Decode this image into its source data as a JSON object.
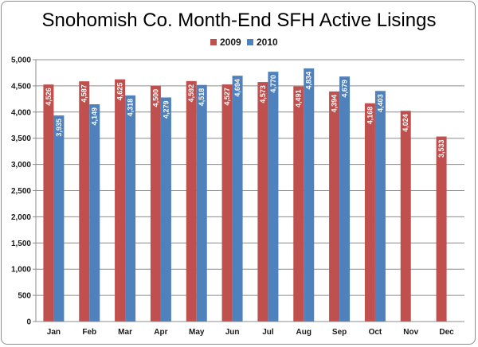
{
  "chart_data": {
    "type": "bar",
    "title": "Snohomish Co. Month-End SFH Active Lisings",
    "xlabel": "",
    "ylabel": "",
    "categories": [
      "Jan",
      "Feb",
      "Mar",
      "Apr",
      "May",
      "Jun",
      "Jul",
      "Aug",
      "Sep",
      "Oct",
      "Nov",
      "Dec"
    ],
    "series": [
      {
        "name": "2009",
        "color": "#c0504d",
        "values": [
          4526,
          4587,
          4625,
          4500,
          4592,
          4527,
          4573,
          4491,
          4394,
          4168,
          4024,
          3533
        ],
        "labels": [
          "4,526",
          "4,587",
          "4,625",
          "4,500",
          "4,592",
          "4,527",
          "4,573",
          "4,491",
          "4,394",
          "4,168",
          "4,024",
          "3,533"
        ]
      },
      {
        "name": "2010",
        "color": "#4f81bd",
        "values": [
          3935,
          4149,
          4318,
          4279,
          4518,
          4694,
          4770,
          4834,
          4679,
          4403,
          null,
          null
        ],
        "labels": [
          "3,935",
          "4,149",
          "4,318",
          "4,279",
          "4,518",
          "4,694",
          "4,770",
          "4,834",
          "4,679",
          "4,403",
          "",
          ""
        ]
      }
    ],
    "ylim": [
      0,
      5000
    ],
    "yticks": [
      0,
      500,
      1000,
      1500,
      2000,
      2500,
      3000,
      3500,
      4000,
      4500,
      5000
    ],
    "ytick_labels": [
      "0",
      "500",
      "1,000",
      "1,500",
      "2,000",
      "2,500",
      "3,000",
      "3,500",
      "4,000",
      "4,500",
      "5,000"
    ],
    "grid": true,
    "legend_position": "top"
  }
}
